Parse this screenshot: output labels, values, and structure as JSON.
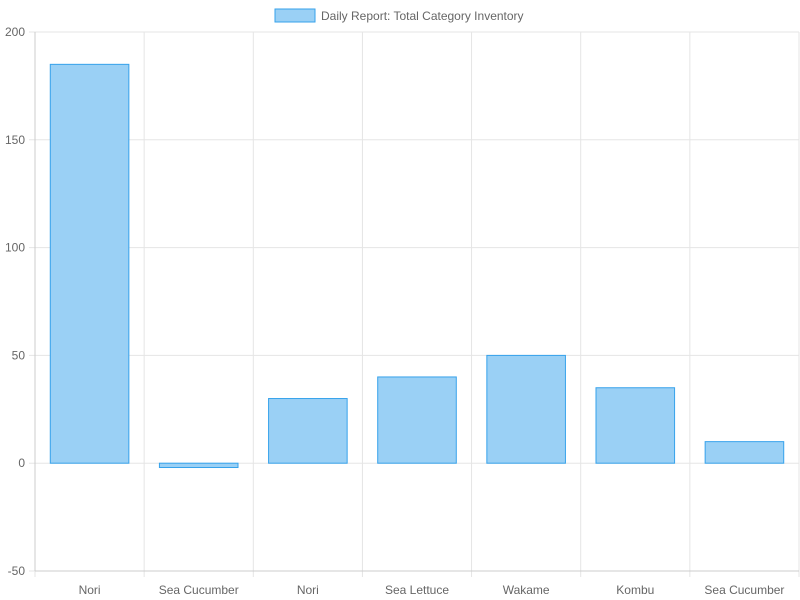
{
  "chart_data": {
    "type": "bar",
    "legend": {
      "label": "Daily Report: Total Category Inventory",
      "position": "top"
    },
    "categories": [
      "Nori",
      "Sea Cucumber",
      "Nori",
      "Sea Lettuce",
      "Wakame",
      "Kombu",
      "Sea Cucumber"
    ],
    "series": [
      {
        "name": "Daily Report: Total Category Inventory",
        "values": [
          185,
          -2,
          30,
          40,
          50,
          35,
          10
        ]
      }
    ],
    "ylim": [
      -50,
      200
    ],
    "yticks": [
      "200",
      "150",
      "100",
      "50",
      "0",
      "-50"
    ],
    "grid": true,
    "colors": {
      "bar_fill": "#9ad0f5",
      "bar_stroke": "#36a2eb",
      "grid": "#e5e5e5",
      "text": "#666666"
    }
  }
}
